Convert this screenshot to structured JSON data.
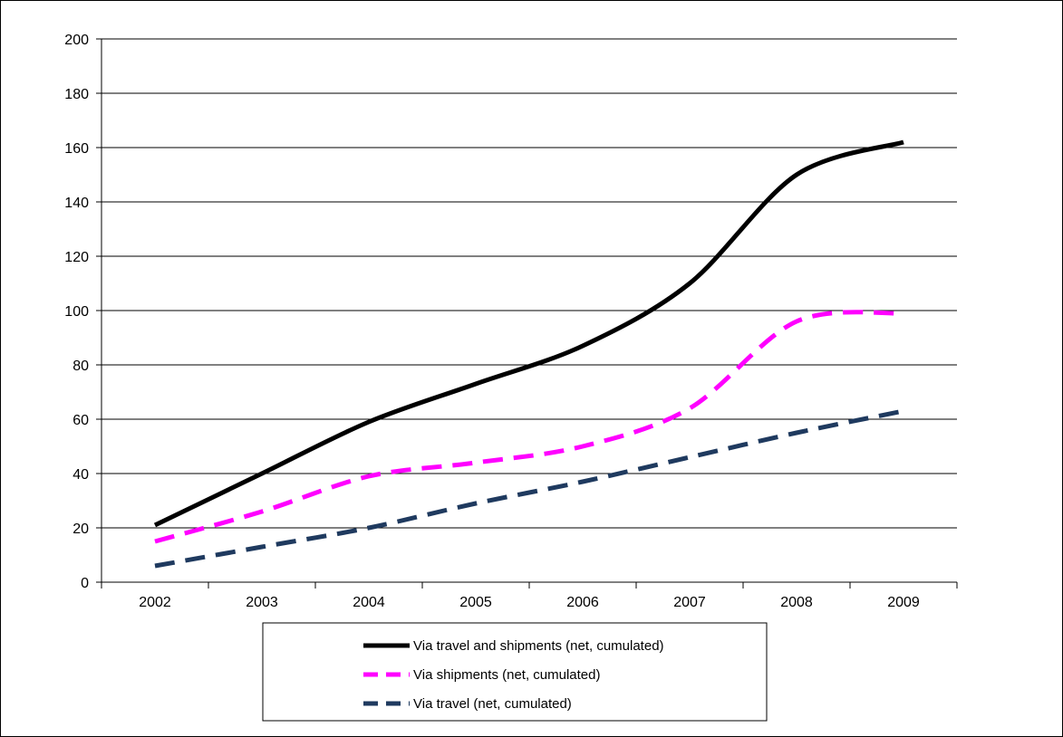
{
  "chart_data": {
    "type": "line",
    "categories": [
      "2002",
      "2003",
      "2004",
      "2005",
      "2006",
      "2007",
      "2008",
      "2009"
    ],
    "ylim": [
      0,
      200
    ],
    "yticks": [
      0,
      20,
      40,
      60,
      80,
      100,
      120,
      140,
      160,
      180,
      200
    ],
    "grid": true,
    "legend_position": "bottom",
    "series": [
      {
        "name": "Via travel and shipments (net, cumulated)",
        "values": [
          21,
          40,
          59,
          73,
          87,
          110,
          150,
          162
        ],
        "color": "#000000",
        "style": "solid"
      },
      {
        "name": "Via shipments (net, cumulated)",
        "values": [
          15,
          26,
          39,
          44,
          50,
          64,
          96,
          99
        ],
        "color": "#ff00ff",
        "style": "dashed"
      },
      {
        "name": "Via travel (net, cumulated)",
        "values": [
          6,
          13,
          20,
          29,
          37,
          46,
          55,
          63
        ],
        "color": "#1f3a5f",
        "style": "dashed"
      }
    ]
  }
}
